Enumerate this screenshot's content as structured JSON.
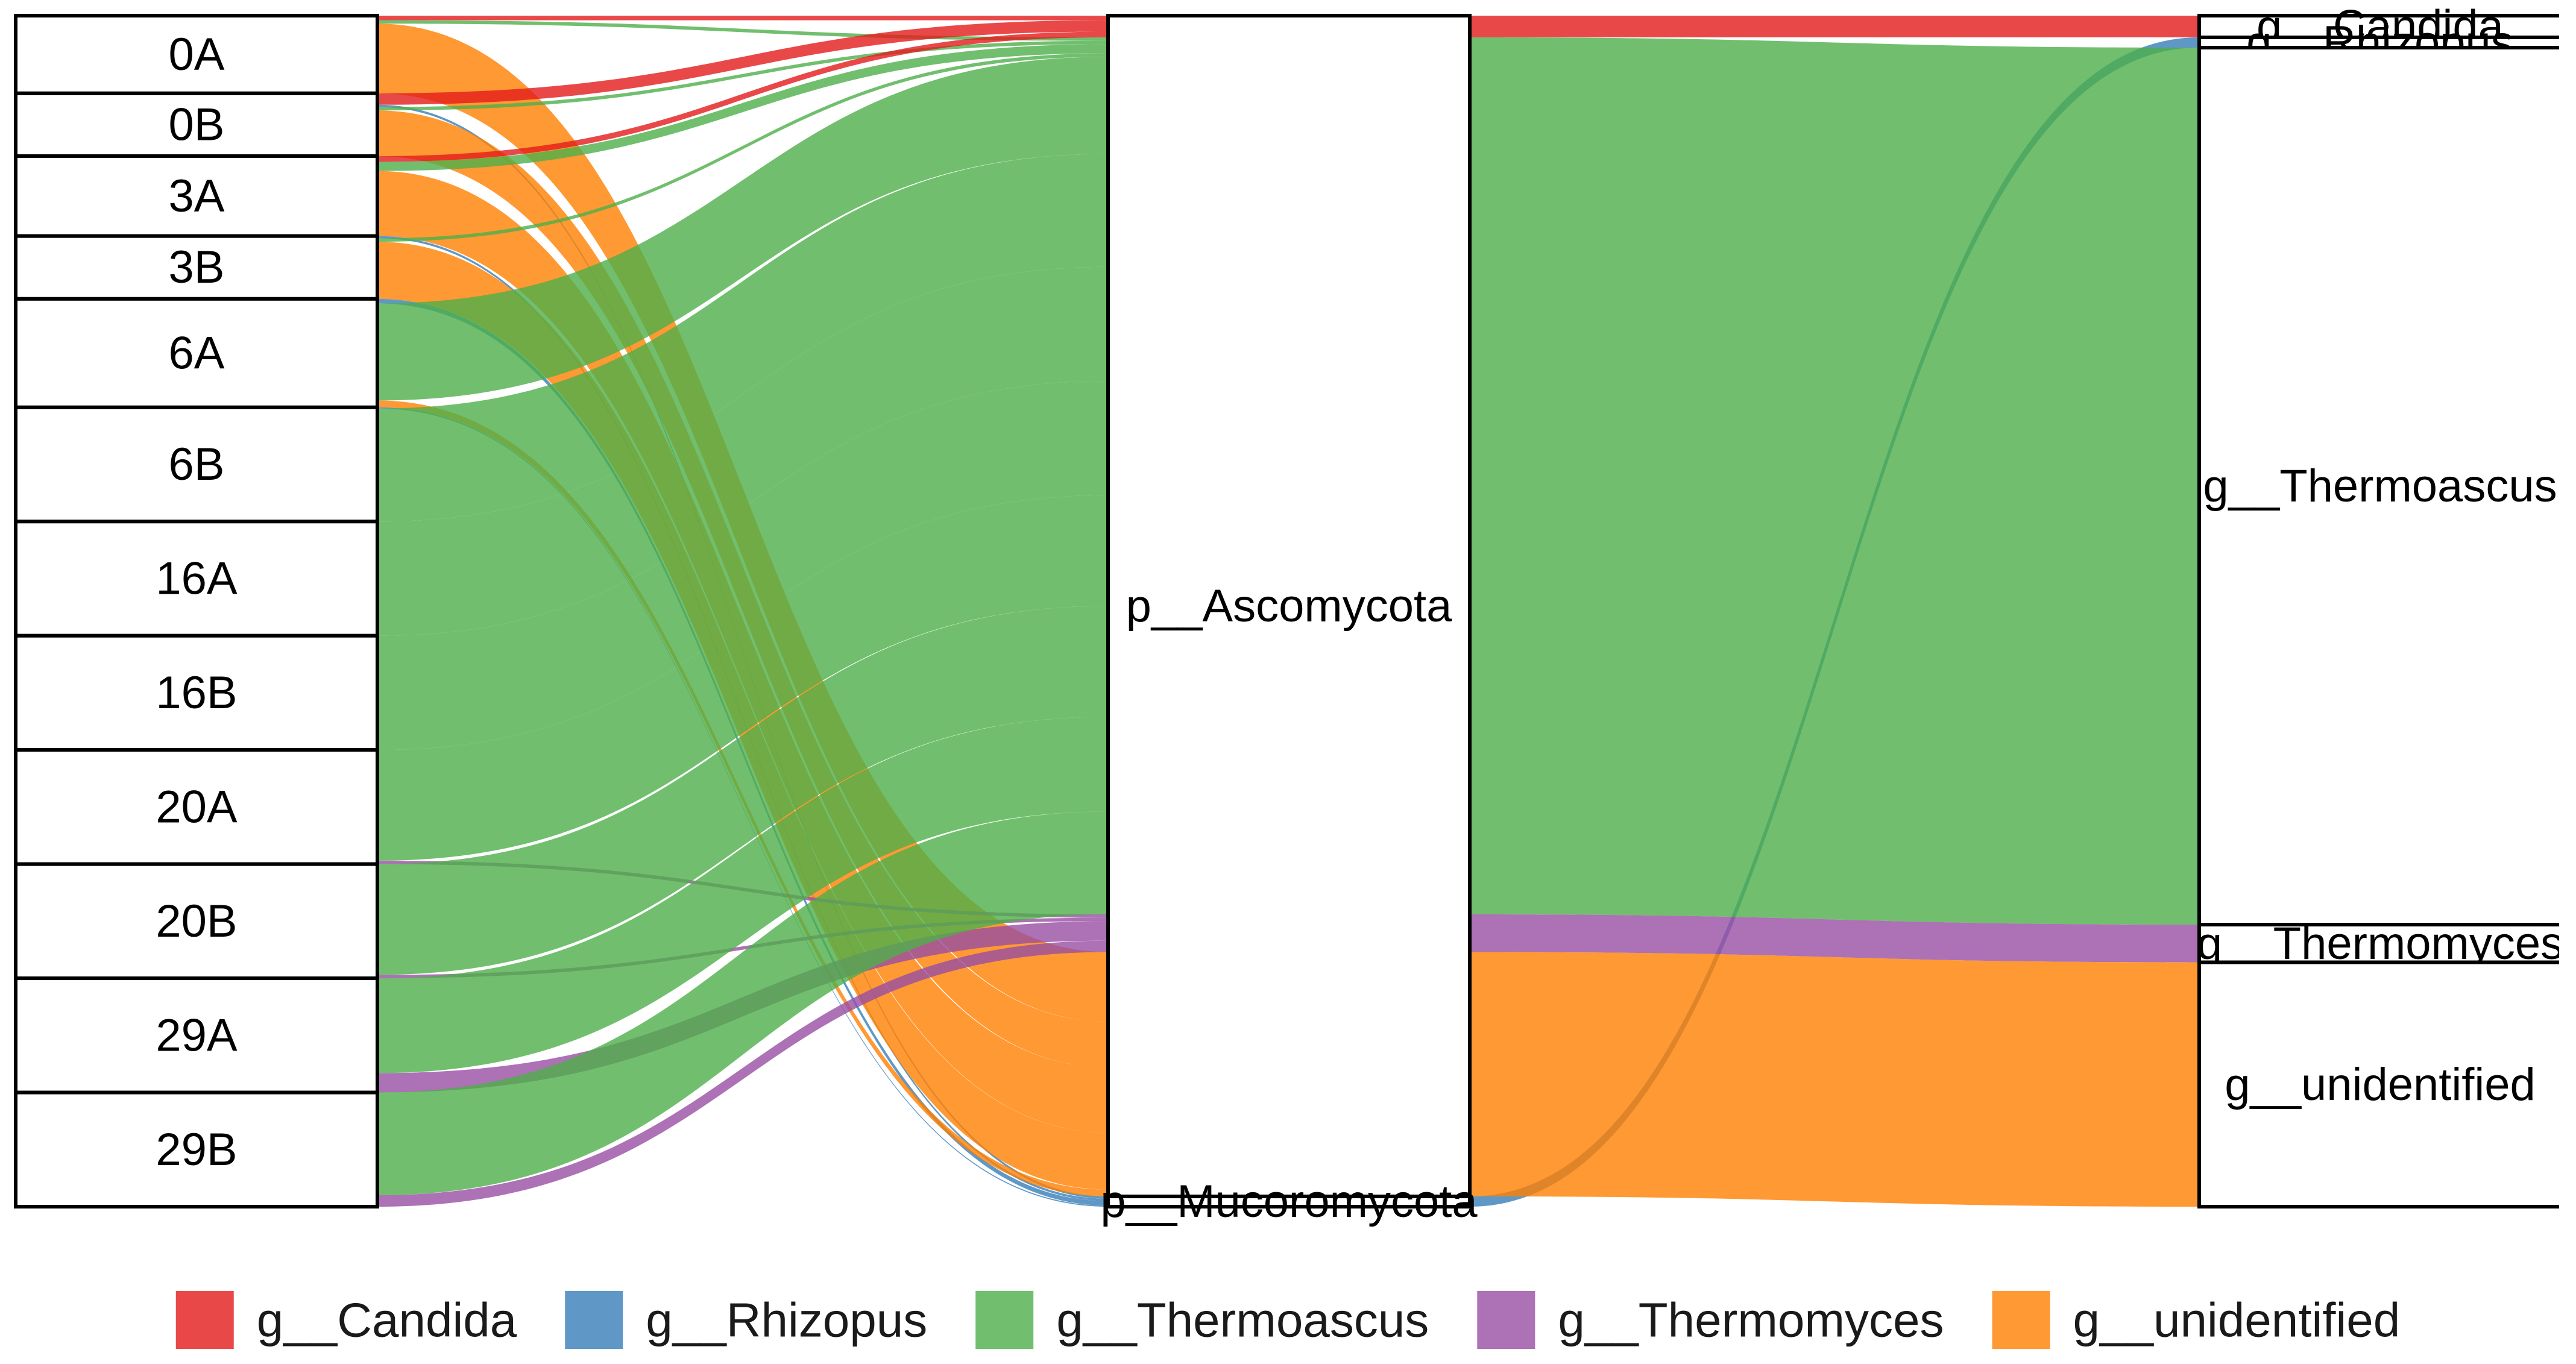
{
  "chart_data": {
    "type": "alluvial",
    "axes": [
      {
        "name": "sample",
        "nodes": [
          {
            "label": "0A",
            "total": 0.68
          },
          {
            "label": "0B",
            "total": 0.55
          },
          {
            "label": "3A",
            "total": 0.7
          },
          {
            "label": "3B",
            "total": 0.55
          },
          {
            "label": "6A",
            "total": 0.95
          },
          {
            "label": "6B",
            "total": 1.0
          },
          {
            "label": "16A",
            "total": 1.0
          },
          {
            "label": "16B",
            "total": 1.0
          },
          {
            "label": "20A",
            "total": 1.0
          },
          {
            "label": "20B",
            "total": 1.0
          },
          {
            "label": "29A",
            "total": 1.0
          },
          {
            "label": "29B",
            "total": 1.0
          }
        ]
      },
      {
        "name": "phylum",
        "nodes": [
          {
            "label": "p__Ascomycota"
          },
          {
            "label": "p__Mucoromycota"
          }
        ]
      },
      {
        "name": "genus",
        "nodes": [
          {
            "label": "g__Candida"
          },
          {
            "label": "g__Rhizopus"
          },
          {
            "label": "g__Thermoascus"
          },
          {
            "label": "g__Thermomyces"
          },
          {
            "label": "g__unidentified"
          }
        ]
      }
    ],
    "genus_phylum": {
      "g__Candida": "p__Ascomycota",
      "g__Thermoascus": "p__Ascomycota",
      "g__Thermomyces": "p__Ascomycota",
      "g__unidentified": "p__Ascomycota",
      "g__Rhizopus": "p__Mucoromycota"
    },
    "series": [
      {
        "name": "g__Candida",
        "values": [
          0.04,
          0.1,
          0.05,
          0.0,
          0.0,
          0.0,
          0.0,
          0.0,
          0.0,
          0.0,
          0.0,
          0.0
        ]
      },
      {
        "name": "g__Rhizopus",
        "values": [
          0.0,
          0.02,
          0.0,
          0.02,
          0.04,
          0.01,
          0.0,
          0.0,
          0.0,
          0.0,
          0.0,
          0.0
        ]
      },
      {
        "name": "g__Thermoascus",
        "values": [
          0.03,
          0.03,
          0.08,
          0.03,
          0.85,
          0.99,
          1.0,
          1.0,
          0.97,
          0.97,
          0.83,
          0.9
        ]
      },
      {
        "name": "g__Thermomyces",
        "values": [
          0.0,
          0.0,
          0.0,
          0.0,
          0.0,
          0.0,
          0.0,
          0.0,
          0.03,
          0.03,
          0.17,
          0.1
        ]
      },
      {
        "name": "g__unidentified",
        "values": [
          0.61,
          0.4,
          0.57,
          0.5,
          0.06,
          0.0,
          0.0,
          0.0,
          0.0,
          0.0,
          0.0,
          0.0
        ]
      }
    ],
    "legend": {
      "placement": "bottom",
      "entries": [
        {
          "label": "g__Candida",
          "color": "#e41a1c"
        },
        {
          "label": "g__Rhizopus",
          "color": "#377eb8"
        },
        {
          "label": "g__Thermoascus",
          "color": "#4daf4a"
        },
        {
          "label": "g__Thermomyces",
          "color": "#984ea3"
        },
        {
          "label": "g__unidentified",
          "color": "#ff7f00"
        }
      ]
    },
    "grid": false
  }
}
